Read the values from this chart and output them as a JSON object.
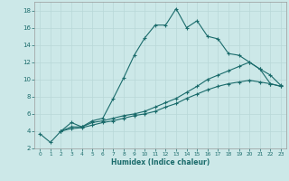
{
  "xlabel": "Humidex (Indice chaleur)",
  "xlim": [
    -0.5,
    23.5
  ],
  "ylim": [
    2,
    19
  ],
  "xticks": [
    0,
    1,
    2,
    3,
    4,
    5,
    6,
    7,
    8,
    9,
    10,
    11,
    12,
    13,
    14,
    15,
    16,
    17,
    18,
    19,
    20,
    21,
    22,
    23
  ],
  "yticks": [
    2,
    4,
    6,
    8,
    10,
    12,
    14,
    16,
    18
  ],
  "bg_color": "#cce8e8",
  "grid_color": "#b8d8d8",
  "line_color": "#1a6b6b",
  "curves": [
    {
      "x": [
        0,
        1,
        2,
        3,
        4,
        5,
        6,
        7,
        8,
        9,
        10,
        11,
        12,
        13,
        14,
        15,
        16,
        17,
        18,
        19,
        20,
        21,
        22,
        23
      ],
      "y": [
        3.7,
        2.7,
        4.0,
        5.0,
        4.5,
        5.2,
        5.5,
        7.8,
        10.2,
        12.8,
        14.8,
        16.3,
        16.3,
        18.2,
        16.0,
        16.8,
        15.0,
        14.7,
        13.0,
        12.8,
        12.0,
        11.2,
        9.5,
        9.2
      ]
    },
    {
      "x": [
        2,
        3,
        4,
        5,
        6,
        7,
        8,
        9,
        10,
        11,
        12,
        13,
        14,
        15,
        16,
        17,
        18,
        19,
        20,
        21,
        22,
        23
      ],
      "y": [
        4.0,
        4.5,
        4.5,
        5.0,
        5.2,
        5.5,
        5.8,
        6.0,
        6.3,
        6.8,
        7.3,
        7.8,
        8.5,
        9.2,
        10.0,
        10.5,
        11.0,
        11.5,
        12.0,
        11.2,
        10.5,
        9.3
      ]
    },
    {
      "x": [
        2,
        3,
        4,
        5,
        6,
        7,
        8,
        9,
        10,
        11,
        12,
        13,
        14,
        15,
        16,
        17,
        18,
        19,
        20,
        21,
        22,
        23
      ],
      "y": [
        4.0,
        4.3,
        4.4,
        4.7,
        5.0,
        5.2,
        5.5,
        5.8,
        6.0,
        6.3,
        6.8,
        7.2,
        7.8,
        8.3,
        8.8,
        9.2,
        9.5,
        9.7,
        9.9,
        9.7,
        9.5,
        9.2
      ]
    }
  ]
}
